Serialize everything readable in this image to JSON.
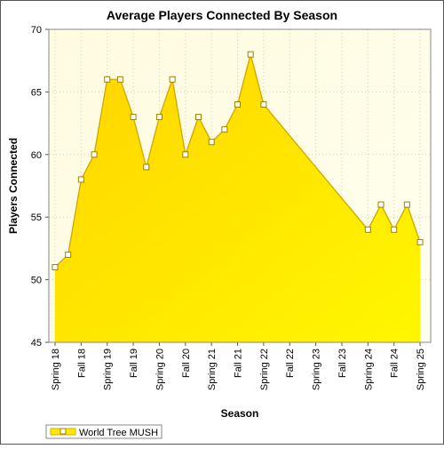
{
  "chart_data": {
    "type": "area",
    "title": "Average Players Connected By Season",
    "xlabel": "Season",
    "ylabel": "Players Connected",
    "ylim": [
      45,
      70
    ],
    "yticks": [
      45,
      50,
      55,
      60,
      65,
      70
    ],
    "x_tick_labels": [
      "Spring 18",
      "Fall 18",
      "Spring 19",
      "Fall 19",
      "Spring 20",
      "Fall 20",
      "Spring 21",
      "Fall 21",
      "Spring 22",
      "Fall 22",
      "Spring 23",
      "Fall 23",
      "Spring 24",
      "Fall 24",
      "Spring 25"
    ],
    "grid": true,
    "legend_position": "bottom-left",
    "series": [
      {
        "name": "World Tree MUSH",
        "color": "#ffee00",
        "line_color": "#d4aa00",
        "x": [
          0,
          0.5,
          1,
          1.5,
          2,
          2.5,
          3,
          3.5,
          4,
          4.5,
          5,
          5.5,
          6,
          6.5,
          7,
          7.5,
          8,
          12,
          12.5,
          13,
          13.5,
          14
        ],
        "values": [
          51,
          52,
          58,
          60,
          66,
          66,
          63,
          59,
          63,
          66,
          60,
          63,
          61,
          62,
          64,
          68,
          64,
          54,
          56,
          54,
          56,
          53
        ]
      }
    ]
  }
}
